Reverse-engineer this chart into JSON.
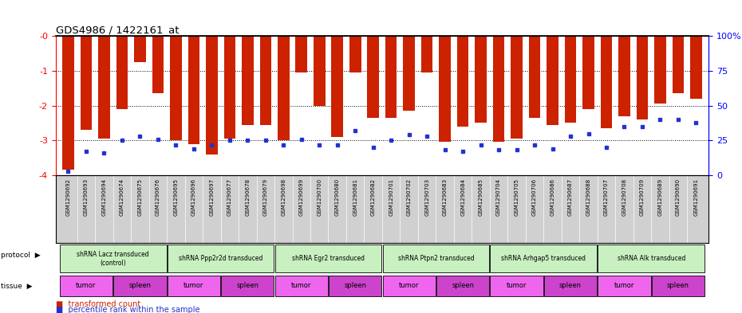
{
  "title": "GDS4986 / 1422161_at",
  "samples": [
    "GSM1290692",
    "GSM1290693",
    "GSM1290694",
    "GSM1290674",
    "GSM1290675",
    "GSM1290676",
    "GSM1290695",
    "GSM1290696",
    "GSM1290697",
    "GSM1290677",
    "GSM1290678",
    "GSM1290679",
    "GSM1290698",
    "GSM1290699",
    "GSM1290700",
    "GSM1290680",
    "GSM1290681",
    "GSM1290682",
    "GSM1290701",
    "GSM1290702",
    "GSM1290703",
    "GSM1290683",
    "GSM1290684",
    "GSM1290685",
    "GSM1290704",
    "GSM1290705",
    "GSM1290706",
    "GSM1290686",
    "GSM1290687",
    "GSM1290688",
    "GSM1290707",
    "GSM1290708",
    "GSM1290709",
    "GSM1290689",
    "GSM1290690",
    "GSM1290691"
  ],
  "bar_values": [
    -3.85,
    -2.7,
    -2.95,
    -2.1,
    -0.75,
    -1.65,
    -3.0,
    -3.1,
    -3.4,
    -2.95,
    -2.55,
    -2.55,
    -3.0,
    -1.05,
    -2.0,
    -2.9,
    -1.05,
    -2.35,
    -2.35,
    -2.15,
    -1.05,
    -3.05,
    -2.6,
    -2.5,
    -3.05,
    -2.95,
    -2.35,
    -2.55,
    -2.5,
    -2.1,
    -2.65,
    -2.3,
    -2.4,
    -1.95,
    -1.65,
    -1.8
  ],
  "percentile_values": [
    3,
    17,
    16,
    25,
    28,
    26,
    22,
    19,
    22,
    25,
    25,
    25,
    22,
    26,
    22,
    22,
    32,
    20,
    25,
    29,
    28,
    18,
    17,
    22,
    18,
    18,
    22,
    19,
    28,
    30,
    20,
    35,
    35,
    40,
    40,
    38
  ],
  "protocols": [
    {
      "label": "shRNA Lacz transduced\n(control)",
      "start": 0,
      "end": 5
    },
    {
      "label": "shRNA Ppp2r2d transduced",
      "start": 6,
      "end": 11
    },
    {
      "label": "shRNA Egr2 transduced",
      "start": 12,
      "end": 17
    },
    {
      "label": "shRNA Ptpn2 transduced",
      "start": 18,
      "end": 23
    },
    {
      "label": "shRNA Arhgap5 transduced",
      "start": 24,
      "end": 29
    },
    {
      "label": "shRNA Alk transduced",
      "start": 30,
      "end": 35
    }
  ],
  "tissues": [
    {
      "label": "tumor",
      "start": 0,
      "end": 2
    },
    {
      "label": "spleen",
      "start": 3,
      "end": 5
    },
    {
      "label": "tumor",
      "start": 6,
      "end": 8
    },
    {
      "label": "spleen",
      "start": 9,
      "end": 11
    },
    {
      "label": "tumor",
      "start": 12,
      "end": 14
    },
    {
      "label": "spleen",
      "start": 15,
      "end": 17
    },
    {
      "label": "tumor",
      "start": 18,
      "end": 20
    },
    {
      "label": "spleen",
      "start": 21,
      "end": 23
    },
    {
      "label": "tumor",
      "start": 24,
      "end": 26
    },
    {
      "label": "spleen",
      "start": 27,
      "end": 29
    },
    {
      "label": "tumor",
      "start": 30,
      "end": 32
    },
    {
      "label": "spleen",
      "start": 33,
      "end": 35
    }
  ],
  "ylim_min": -4.0,
  "ylim_max": 0.0,
  "yticks_left": [
    0,
    -1,
    -2,
    -3,
    -4
  ],
  "ytick_left_labels": [
    "-0",
    "-1",
    "-2",
    "-3",
    "-4"
  ],
  "yticks_right_pct": [
    0,
    25,
    50,
    75,
    100
  ],
  "ytick_right_labels": [
    "100%",
    "75",
    "50",
    "25",
    "0"
  ],
  "grid_lines": [
    -1,
    -2,
    -3
  ],
  "bar_color": "#cc2200",
  "marker_color": "#2233cc",
  "proto_color": "#c8f0c0",
  "tissue_tumor_color": "#ee66ee",
  "tissue_spleen_color": "#cc44cc",
  "tick_bg_color": "#d0d0d0",
  "bg_color": "#ffffff"
}
